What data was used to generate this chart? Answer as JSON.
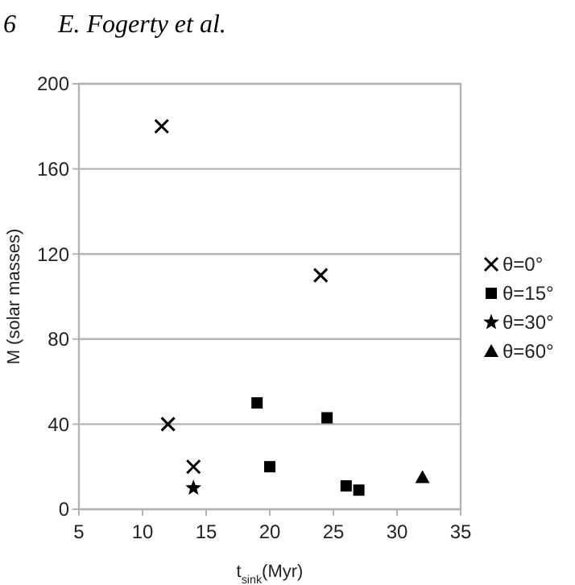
{
  "chart_data": {
    "type": "scatter",
    "xlabel": "t$_{sink}$(Myr)",
    "ylabel": "M (solar masses)",
    "annotations": [
      "6",
      "E. Fogerty et al."
    ],
    "xlim": [
      5,
      35
    ],
    "xticks": [
      5,
      10,
      15,
      20,
      25,
      30,
      35
    ],
    "ylim": [
      0,
      200
    ],
    "yticks": [
      0,
      40,
      80,
      120,
      160,
      200
    ],
    "grid": "y",
    "legend": "right",
    "series": [
      {
        "name": "θ=0°",
        "color": "#000000",
        "marker": "cross",
        "x": [
          11.5,
          24,
          12,
          14
        ],
        "values": [
          180,
          110,
          40,
          20
        ]
      },
      {
        "name": "θ=15°",
        "color": "#000000",
        "marker": "square",
        "x": [
          19,
          20,
          24.5,
          26,
          27
        ],
        "values": [
          50,
          20,
          43,
          11,
          9
        ]
      },
      {
        "name": "θ=30°",
        "color": "#000000",
        "marker": "star",
        "x": [
          14
        ],
        "values": [
          10
        ]
      },
      {
        "name": "θ=60°",
        "color": "#000000",
        "marker": "triangle",
        "x": [
          32
        ],
        "values": [
          15
        ]
      }
    ]
  }
}
